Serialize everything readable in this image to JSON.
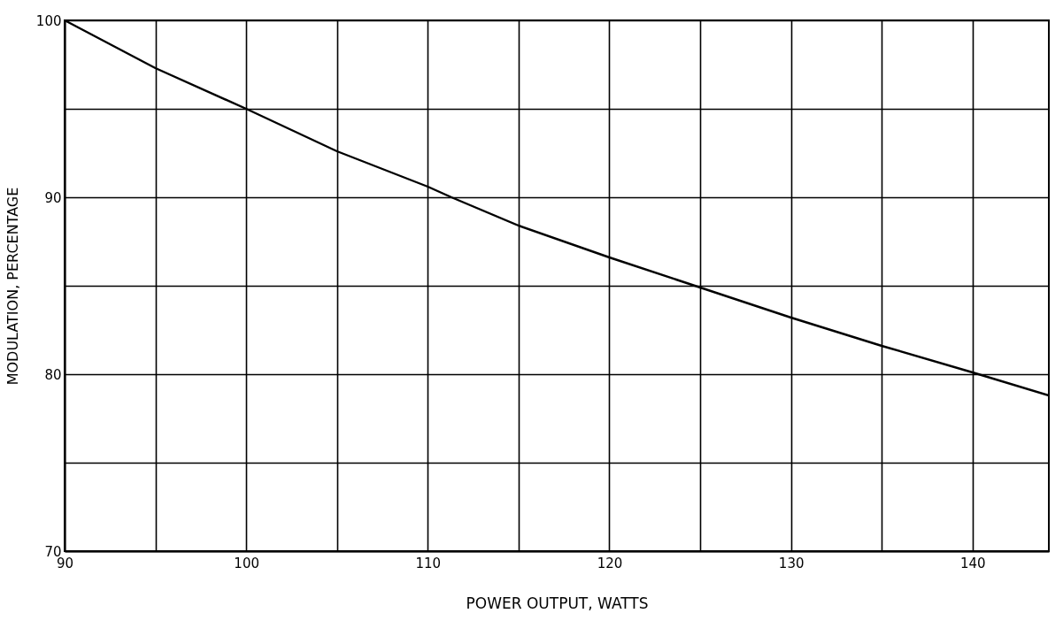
{
  "chart_data": {
    "type": "line",
    "xlabel": "POWER OUTPUT, WATTS",
    "ylabel": "MODULATION, PERCENTAGE",
    "x": [
      90,
      95,
      100,
      105,
      110,
      111.3,
      115,
      120,
      125,
      130,
      135,
      140,
      144.2
    ],
    "series": [
      {
        "color": "#000000",
        "values": [
          100,
          97.3,
          95,
          92.6,
          90.6,
          90,
          88.4,
          86.6,
          84.9,
          83.2,
          81.6,
          80.1,
          78.8
        ]
      }
    ],
    "xlim": [
      90,
      144.2
    ],
    "xticks": [
      90,
      {
        "value": 95,
        "label": null
      },
      100,
      {
        "value": 105,
        "label": null
      },
      110,
      {
        "value": 115,
        "label": null
      },
      120,
      {
        "value": 125,
        "label": null
      },
      130,
      {
        "value": 135,
        "label": null
      },
      140
    ],
    "ylim": [
      70,
      100
    ],
    "yticks": [
      70,
      {
        "value": 75,
        "label": null
      },
      80,
      {
        "value": 85,
        "label": null
      },
      90,
      {
        "value": 95,
        "label": null
      },
      100
    ],
    "grid": true,
    "marker": "none",
    "line_style": "solid"
  }
}
